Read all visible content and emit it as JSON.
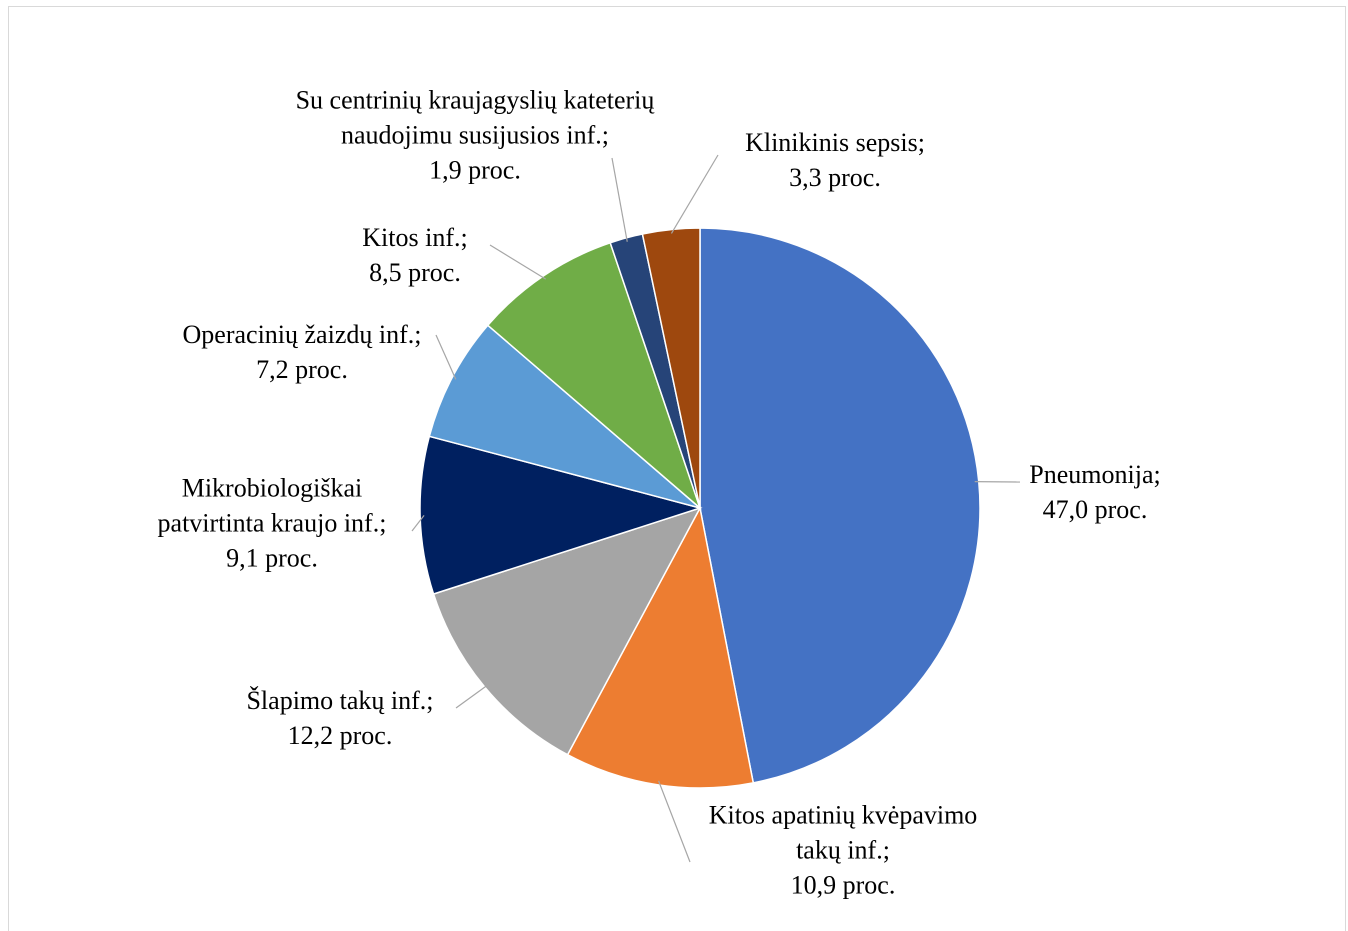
{
  "chart_data": {
    "type": "pie",
    "categories": [
      "Pneumonija;",
      "Kitos apatinių kvėpavimo takų inf.;",
      "Šlapimo takų inf.;",
      "Mikrobiologiškai patvirtinta kraujo inf.;",
      "Operacinių žaizdų inf.;",
      "Kitos inf.;",
      "Su centrinių kraujagyslių kateterių naudojimu susijusios inf.;",
      "Klinikinis  sepsis;"
    ],
    "values": [
      47.0,
      10.9,
      12.2,
      9.1,
      7.2,
      8.5,
      1.9,
      3.3
    ],
    "value_labels": [
      "47,0 proc.",
      "10,9 proc.",
      "12,2 proc.",
      "9,1 proc.",
      "7,2 proc.",
      "8,5 proc.",
      "1,9 proc.",
      "3,3 proc."
    ],
    "colors": [
      "#4472c4",
      "#ed7d31",
      "#a5a5a5",
      "#002060",
      "#5b9bd5",
      "#70ad47",
      "#264478",
      "#9e480e"
    ]
  }
}
